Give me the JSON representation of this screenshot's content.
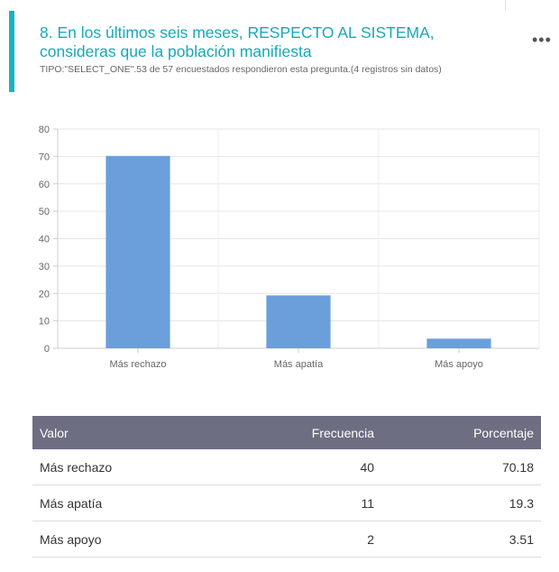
{
  "header": {
    "title": "8. En los últimos seis meses, RESPECTO AL SISTEMA, consideras que la población manifiesta",
    "meta": "TIPO:\"SELECT_ONE\".53 de 57 encuestados respondieron esta pregunta.(4 registros sin datos)",
    "menu_icon": "more-dots-icon",
    "accent_color": "#17b3c1"
  },
  "chart_data": {
    "type": "bar",
    "categories": [
      "Más rechazo",
      "Más apatía",
      "Más apoyo"
    ],
    "values": [
      70.18,
      19.3,
      3.51
    ],
    "ylim": [
      0,
      80
    ],
    "yticks": [
      0,
      10,
      20,
      30,
      40,
      50,
      60,
      70,
      80
    ],
    "grid": true,
    "bar_color": "#6b9fdc"
  },
  "table": {
    "headers": [
      "Valor",
      "Frecuencia",
      "Porcentaje"
    ],
    "rows": [
      [
        "Más rechazo",
        "40",
        "70.18"
      ],
      [
        "Más apatía",
        "11",
        "19.3"
      ],
      [
        "Más apoyo",
        "2",
        "3.51"
      ]
    ]
  }
}
